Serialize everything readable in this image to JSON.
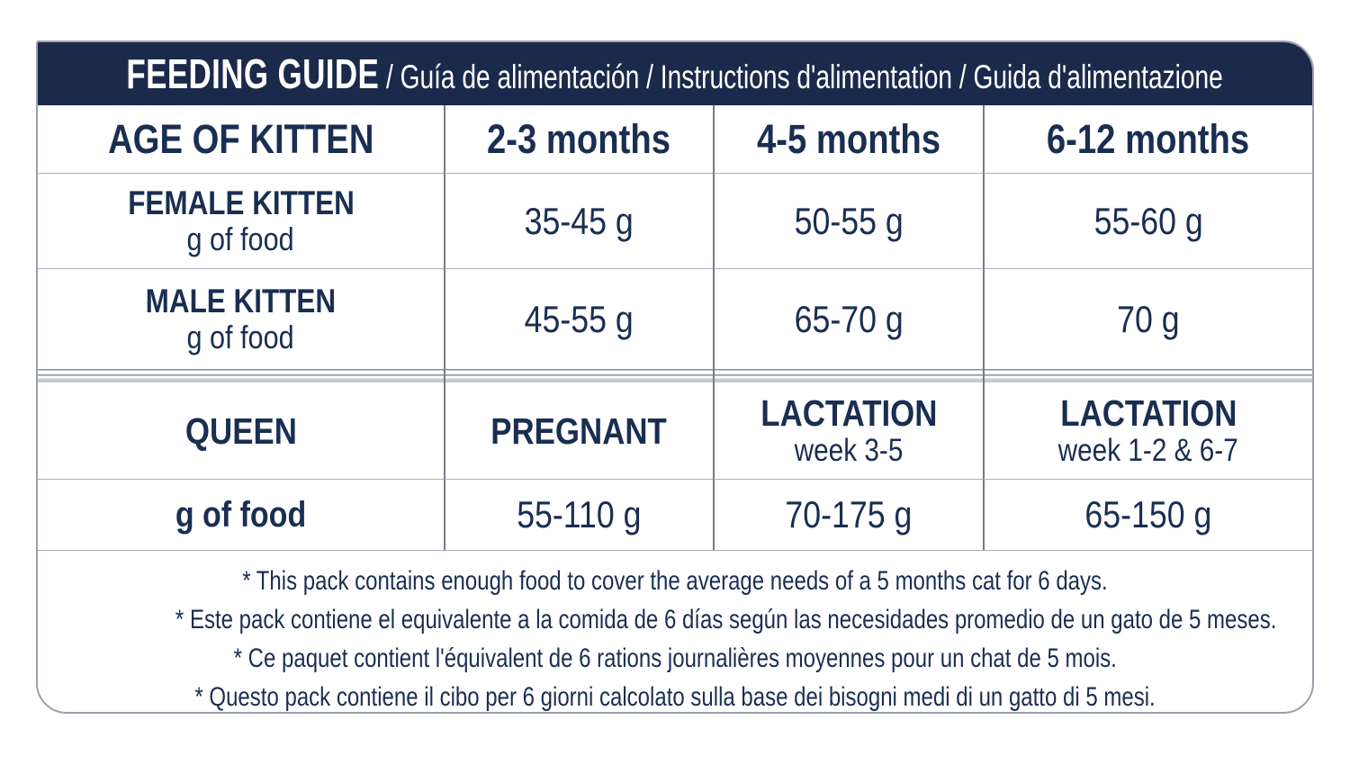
{
  "header": {
    "title": "FEEDING GUIDE",
    "subtitle": " / Guía de alimentación / Instructions d'alimentation / Guida d'alimentazione"
  },
  "kitten_section": {
    "age_label": "AGE OF KITTEN",
    "age_columns": [
      "2-3 months",
      "4-5 months",
      "6-12 months"
    ],
    "rows": [
      {
        "label": "FEMALE KITTEN",
        "unit": "g of food",
        "values": [
          "35-45 g",
          "50-55 g",
          "55-60 g"
        ]
      },
      {
        "label": "MALE KITTEN",
        "unit": "g of food",
        "values": [
          "45-55 g",
          "65-70 g",
          "70 g"
        ]
      }
    ]
  },
  "queen_section": {
    "label": "QUEEN",
    "stages": [
      {
        "title": "PREGNANT"
      },
      {
        "title": "LACTATION",
        "subtitle": "week 3-5"
      },
      {
        "title": "LACTATION",
        "subtitle": "week 1-2 & 6-7"
      }
    ],
    "food_label": "g of food",
    "food_values": [
      "55-110 g",
      "70-175 g",
      "65-150 g"
    ]
  },
  "notes": {
    "en": "* This pack contains enough food to cover the average needs of a 5 months cat for 6 days.",
    "es": "* Este pack contiene el equivalente a la comida de 6 días según las necesidades promedio de un gato de 5 meses.",
    "fr": "* Ce paquet contient l'équivalent de 6 rations journalières moyennes pour un chat de 5 mois.",
    "it": "* Questo pack contiene il cibo per 6 giorni calcolato sulla base dei bisogni medi di un gatto di 5 mesi."
  },
  "colors": {
    "header_bg": "#1b2a4b",
    "text": "#1a2e52",
    "grid_line_h": "#abb0ba",
    "grid_line_v": "#767c87",
    "card_border": "#99a0ab",
    "separator_thick": "#c6cad1"
  }
}
